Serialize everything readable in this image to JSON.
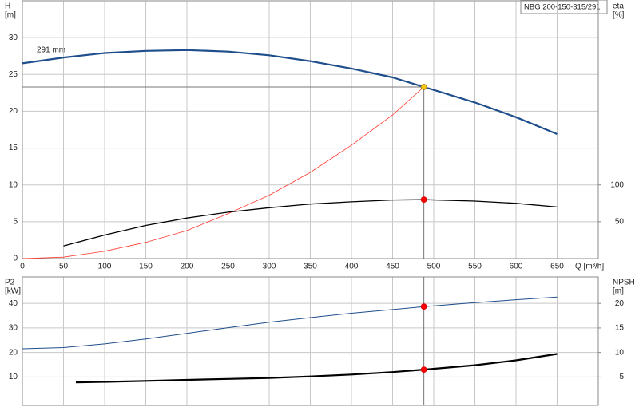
{
  "chart_data": [
    {
      "type": "line",
      "title": "NBG 200-150-315/291",
      "annotation": "291 mm",
      "ylabel": [
        "H",
        "[m]"
      ],
      "y2label": [
        "eta",
        "[%]"
      ],
      "xlabel": "Q [m³/h]",
      "xlim": [
        0,
        700
      ],
      "xticks": [
        0,
        50,
        100,
        150,
        200,
        250,
        300,
        350,
        400,
        450,
        500,
        550,
        600,
        650
      ],
      "ylim": [
        0,
        35
      ],
      "yticks": [
        0,
        5,
        10,
        15,
        20,
        25,
        30
      ],
      "y2lim": [
        0,
        350
      ],
      "y2ticks": [
        50,
        100
      ],
      "grid": true,
      "series": [
        {
          "color": "#1f4e8c",
          "line_width": 2.2,
          "x": [
            0,
            50,
            100,
            150,
            200,
            250,
            300,
            350,
            400,
            450,
            488,
            500,
            550,
            600,
            650
          ],
          "values": [
            26.5,
            27.3,
            27.9,
            28.2,
            28.3,
            28.1,
            27.6,
            26.8,
            25.8,
            24.6,
            23.3,
            22.9,
            21.2,
            19.2,
            16.9
          ]
        },
        {
          "color": "#ff3b30",
          "line_width": 0.8,
          "x": [
            0,
            50,
            100,
            150,
            200,
            250,
            300,
            350,
            400,
            450,
            488
          ],
          "values": [
            0,
            0.2,
            1,
            2.2,
            3.8,
            6.1,
            8.6,
            11.7,
            15.4,
            19.5,
            23.3
          ]
        },
        {
          "color": "#000000",
          "line_width": 1.3,
          "axis": "y2",
          "x": [
            50,
            100,
            150,
            200,
            250,
            300,
            350,
            400,
            450,
            488,
            550,
            600,
            650
          ],
          "values": [
            17,
            32,
            45,
            55,
            63,
            69,
            74,
            77,
            79.5,
            80,
            78,
            75,
            70
          ]
        },
        {
          "color": "#f5c518",
          "marker": true,
          "guide": "both",
          "x": [
            488
          ],
          "values": [
            23.3
          ]
        },
        {
          "color": "#ff0000",
          "marker": true,
          "axis": "y2",
          "x": [
            488
          ],
          "values": [
            80
          ]
        }
      ]
    },
    {
      "type": "line",
      "ylabel": [
        "P2",
        "[kW]"
      ],
      "y2label": [
        "NPSH",
        "[m]"
      ],
      "xlim": [
        0,
        700
      ],
      "xgrid": [
        0,
        50,
        100,
        150,
        200,
        250,
        300,
        350,
        400,
        450,
        500,
        550,
        600,
        650
      ],
      "ylim": [
        -1.6,
        50.8
      ],
      "yticks": [
        10,
        20,
        30,
        40
      ],
      "y2lim": [
        -0.8,
        25.4
      ],
      "y2ticks": [
        5,
        10,
        15,
        20
      ],
      "grid": true,
      "series": [
        {
          "color": "#1f4e8c",
          "line_width": 1,
          "x": [
            0,
            50,
            100,
            150,
            200,
            250,
            300,
            350,
            400,
            450,
            488,
            550,
            600,
            650
          ],
          "values": [
            21.5,
            22,
            23.5,
            25.5,
            27.8,
            30.1,
            32.3,
            34.2,
            36,
            37.5,
            38.7,
            40.3,
            41.5,
            42.6
          ]
        },
        {
          "color": "#000000",
          "line_width": 2.2,
          "axis": "y2",
          "x": [
            65,
            100,
            150,
            200,
            250,
            300,
            350,
            400,
            450,
            488,
            550,
            600,
            650
          ],
          "values": [
            3.9,
            4,
            4.2,
            4.4,
            4.6,
            4.8,
            5.1,
            5.5,
            6,
            6.5,
            7.4,
            8.4,
            9.7
          ]
        },
        {
          "color": "#ff0000",
          "marker": true,
          "guide": "vertical",
          "x": [
            488
          ],
          "values": [
            38.7
          ]
        },
        {
          "color": "#ff0000",
          "marker": true,
          "axis": "y2",
          "x": [
            488
          ],
          "values": [
            6.5
          ]
        }
      ]
    }
  ]
}
